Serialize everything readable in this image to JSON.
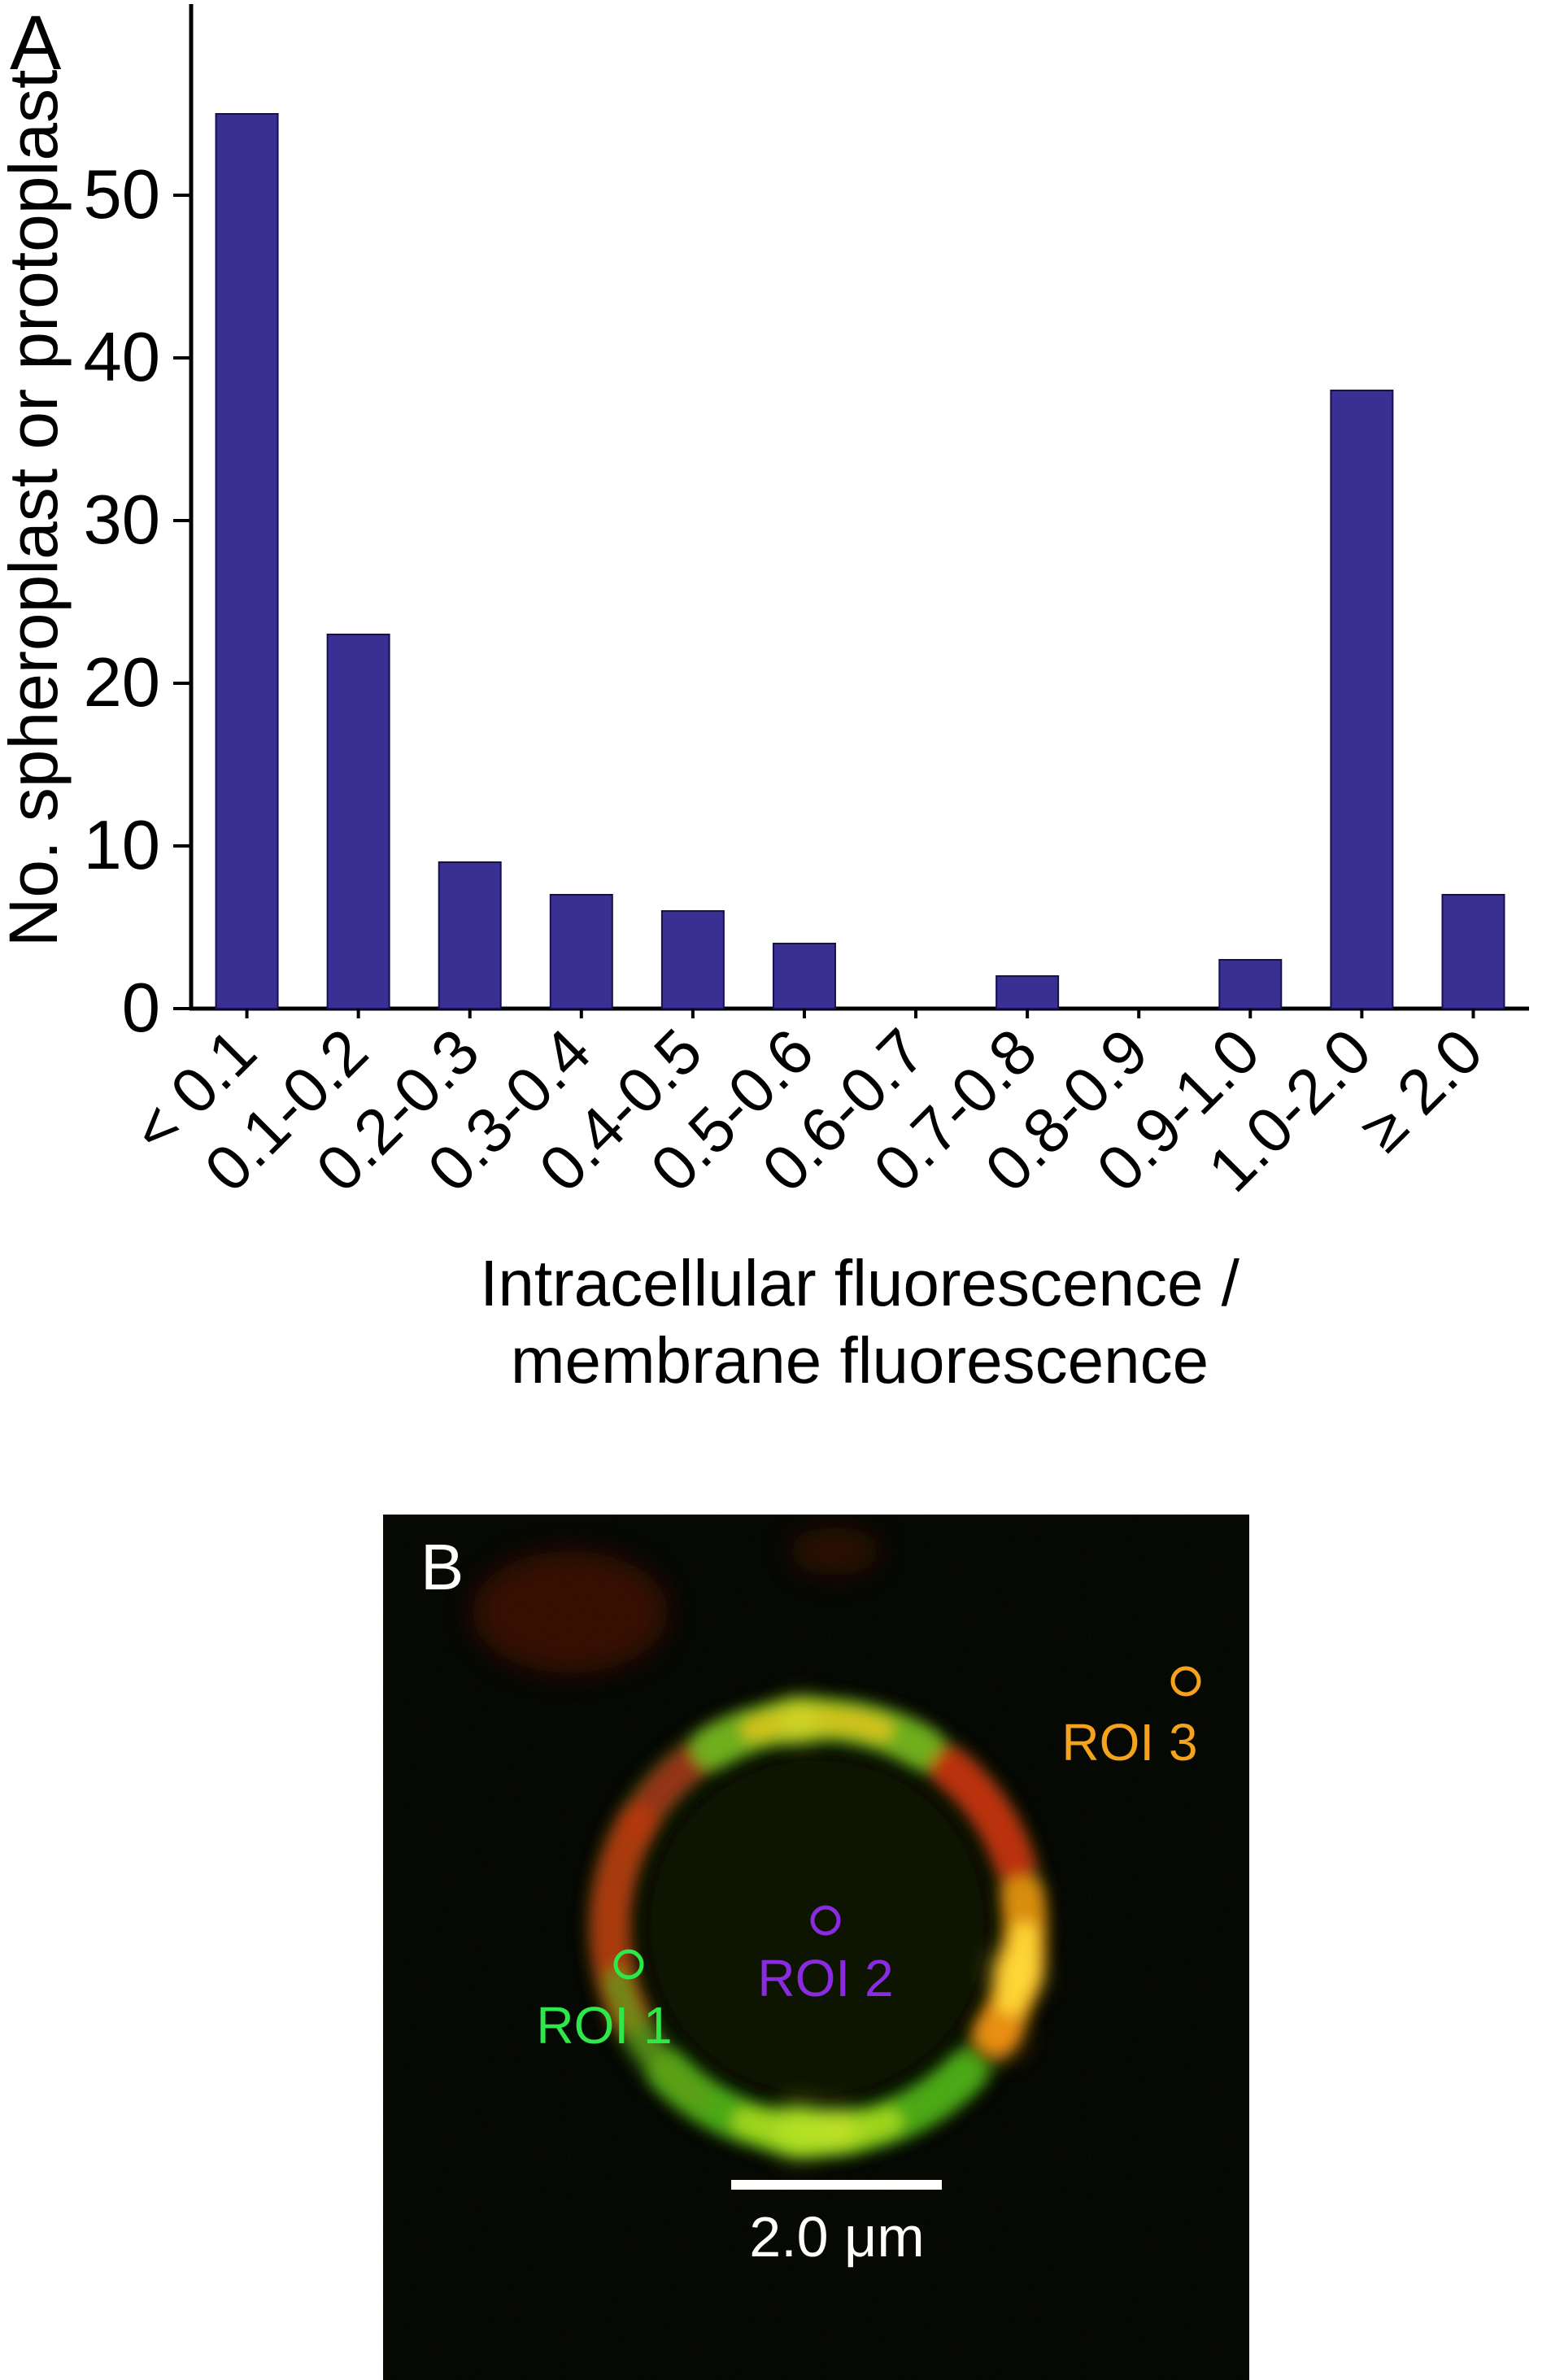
{
  "figure": {
    "background": "#ffffff"
  },
  "panel_a": {
    "label": "A",
    "y_axis_label": "No. spheroplast or protoplast",
    "x_axis_label_line1": "Intracellular fluorescence /",
    "x_axis_label_line2": "membrane fluorescence"
  },
  "chart_data": {
    "type": "bar",
    "title": "",
    "categories": [
      "< 0.1",
      "0.1-0.2",
      "0.2-0.3",
      "0.3-0.4",
      "0.4-0.5",
      "0.5-0.6",
      "0.6-0.7",
      "0.7-0.8",
      "0.8-0.9",
      "0.9-1.0",
      "1.0-2.0",
      "≥ 2.0"
    ],
    "values": [
      55,
      23,
      9,
      7,
      6,
      4,
      0,
      2,
      0,
      3,
      38,
      7
    ],
    "xlabel": "Intracellular fluorescence / membrane fluorescence",
    "ylabel": "No. spheroplast or protoplast",
    "ylim": [
      0,
      61
    ],
    "yticks": [
      0,
      10,
      20,
      30,
      40,
      50
    ],
    "grid": false,
    "legend": null,
    "bar_color": "#3a2f93",
    "bar_edge_color": "#15104e",
    "axis_color": "#000000"
  },
  "panel_b": {
    "label": "B",
    "rois": [
      {
        "name": "ROI 1",
        "color": "#2ee84a"
      },
      {
        "name": "ROI 2",
        "color": "#8a2be2"
      },
      {
        "name": "ROI 3",
        "color": "#f5a31c"
      }
    ],
    "scale_bar_label": "2.0 μm",
    "scale_bar_color": "#ffffff"
  }
}
